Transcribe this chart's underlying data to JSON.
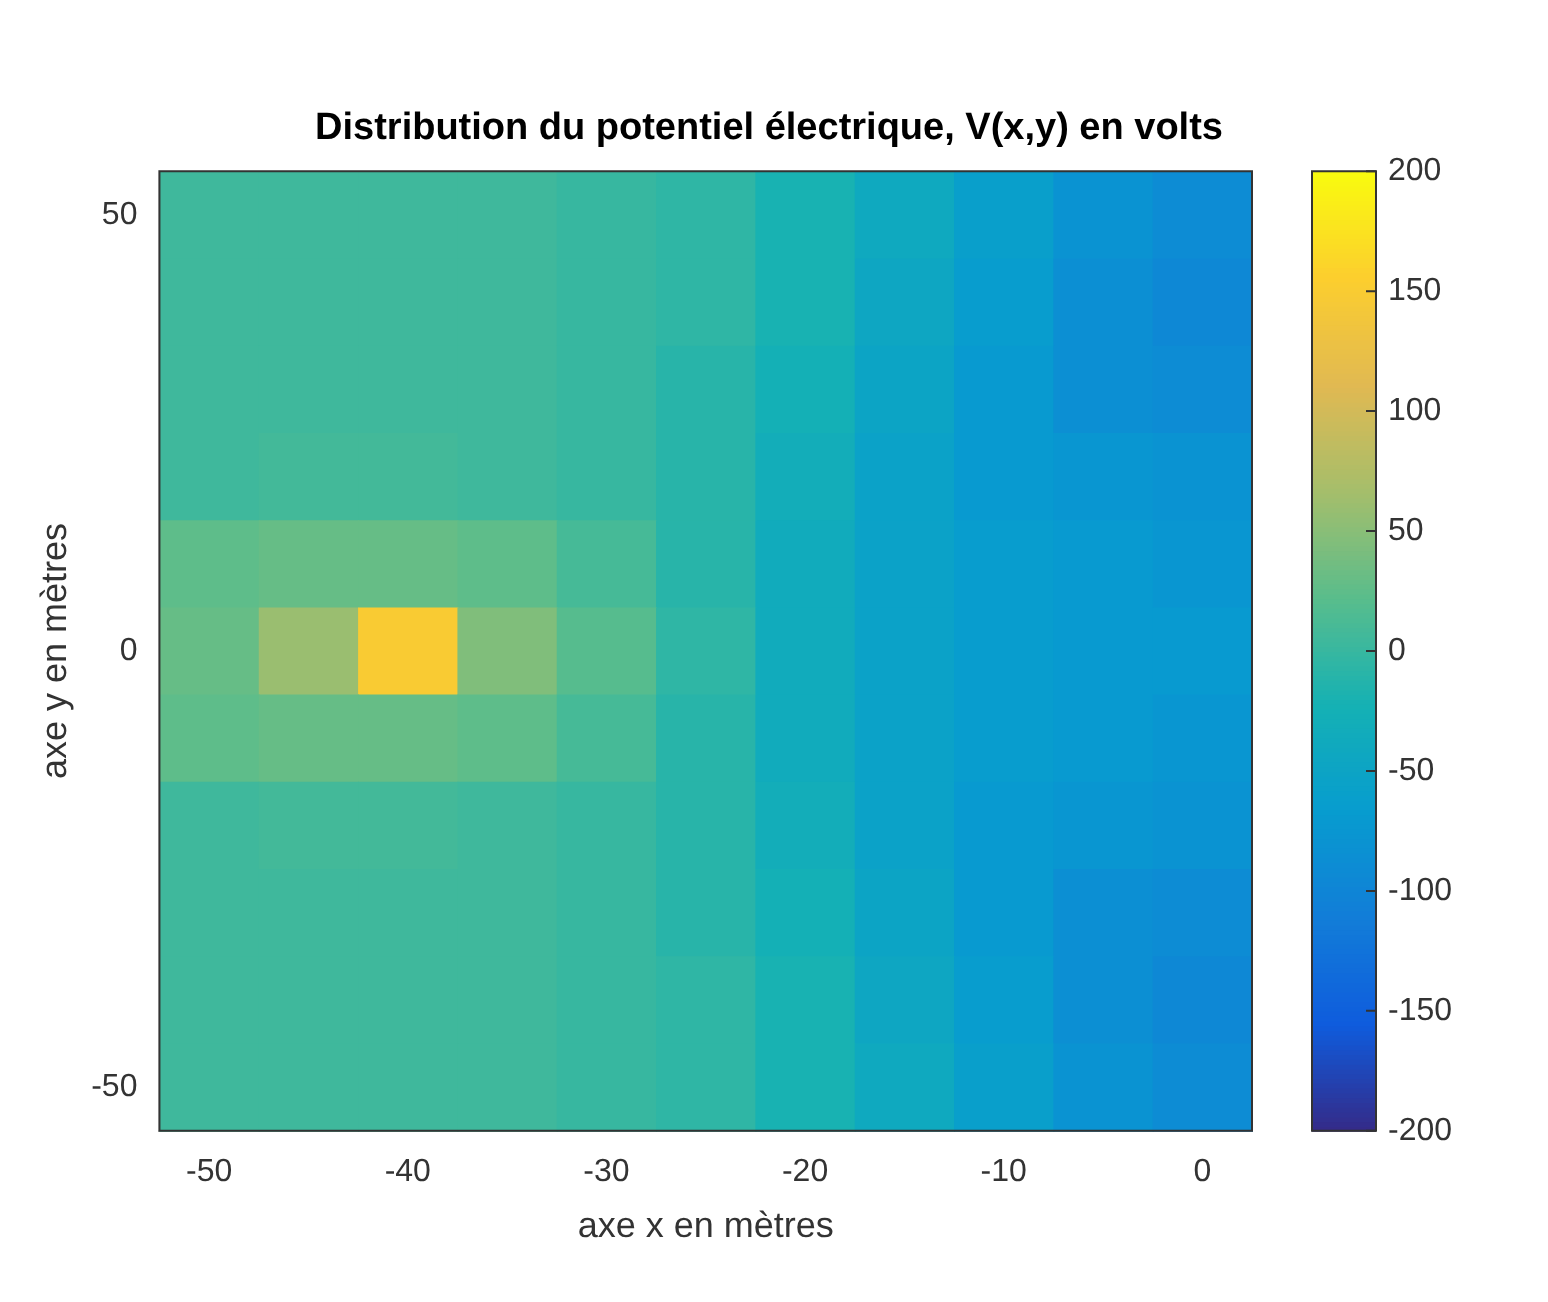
{
  "chart_data": {
    "type": "heatmap",
    "title": "Distribution du potentiel électrique, V(x,y) en volts",
    "xlabel": "axe x en mètres",
    "ylabel": "axe y en mètres",
    "categories": [
      "-50",
      null,
      "-40",
      null,
      "-30",
      null,
      "-20",
      null,
      "-10",
      null,
      "0"
    ],
    "y_categories": [
      "50",
      null,
      null,
      null,
      null,
      "0",
      null,
      null,
      null,
      null,
      "-50"
    ],
    "cells": [
      [
        5,
        5,
        5,
        5,
        0,
        -5,
        -20,
        -40,
        -60,
        -80,
        -90
      ],
      [
        5,
        5,
        5,
        5,
        0,
        -5,
        -20,
        -45,
        -65,
        -85,
        -95
      ],
      [
        5,
        5,
        5,
        5,
        0,
        -10,
        -25,
        -50,
        -70,
        -85,
        -90
      ],
      [
        5,
        8,
        8,
        5,
        0,
        -10,
        -30,
        -55,
        -70,
        -75,
        -80
      ],
      [
        25,
        30,
        30,
        25,
        10,
        -10,
        -35,
        -55,
        -65,
        -70,
        -75
      ],
      [
        30,
        60,
        150,
        45,
        20,
        -5,
        -35,
        -55,
        -65,
        -70,
        -70
      ],
      [
        25,
        30,
        30,
        25,
        10,
        -10,
        -35,
        -55,
        -65,
        -70,
        -75
      ],
      [
        5,
        8,
        8,
        5,
        0,
        -10,
        -30,
        -55,
        -70,
        -75,
        -80
      ],
      [
        5,
        5,
        5,
        5,
        0,
        -10,
        -25,
        -50,
        -70,
        -85,
        -90
      ],
      [
        5,
        5,
        5,
        5,
        0,
        -5,
        -20,
        -45,
        -65,
        -85,
        -95
      ],
      [
        5,
        5,
        5,
        5,
        0,
        -5,
        -20,
        -40,
        -60,
        -80,
        -90
      ]
    ],
    "clim": [
      -200,
      200
    ],
    "cticks": [
      -200,
      -150,
      -100,
      -50,
      0,
      50,
      100,
      150,
      200
    ]
  }
}
